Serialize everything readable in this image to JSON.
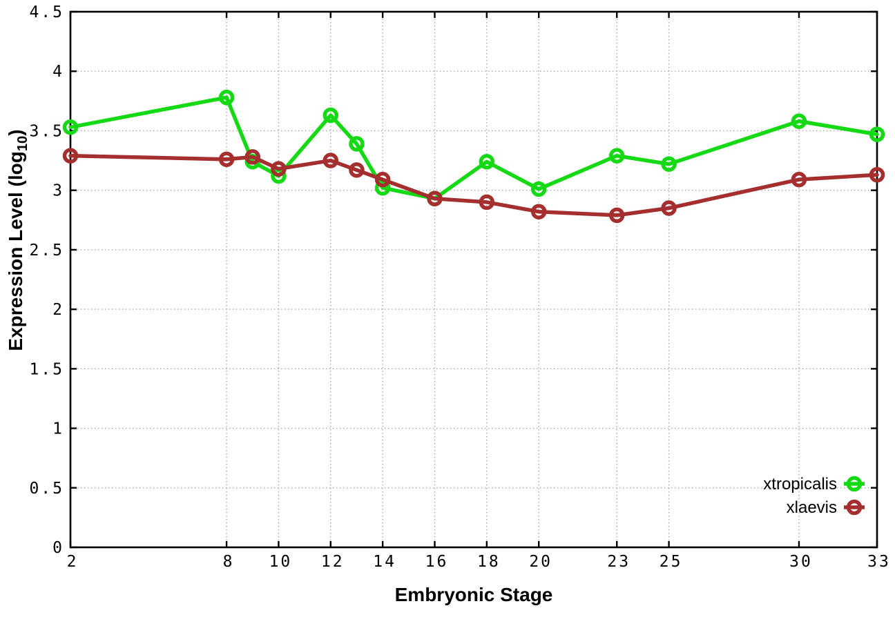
{
  "figure": {
    "background": "#ffffff",
    "border_color": "#000000",
    "grid_color": "#a8a8a8"
  },
  "chart_data": {
    "type": "line",
    "title": "",
    "xlabel": "Embryonic Stage",
    "ylabel": "Expression Level (log10)",
    "ylabel_prefix": "Expression Level (log",
    "ylabel_sub": "10",
    "ylabel_suffix": ")",
    "x": [
      2,
      8,
      9,
      10,
      12,
      13,
      14,
      16,
      18,
      20,
      23,
      25,
      30,
      33
    ],
    "series": [
      {
        "name": "xtropicalis",
        "color": "#16d916",
        "values": [
          3.53,
          3.78,
          3.24,
          3.12,
          3.63,
          3.39,
          3.02,
          2.93,
          3.24,
          3.01,
          3.29,
          3.22,
          3.58,
          3.47
        ]
      },
      {
        "name": "xlaevis",
        "color": "#a52e2e",
        "values": [
          3.29,
          3.26,
          3.28,
          3.18,
          3.25,
          3.17,
          3.09,
          2.93,
          2.9,
          2.82,
          2.79,
          2.85,
          3.09,
          3.13
        ]
      }
    ],
    "xlim": [
      2,
      33
    ],
    "ylim": [
      0,
      4.5
    ],
    "xticks": {
      "values": [
        2,
        8,
        10,
        12,
        14,
        16,
        18,
        20,
        23,
        25,
        30,
        33
      ],
      "labels": [
        "2",
        "8",
        "10",
        "12",
        "14",
        "16",
        "18",
        "20",
        "23",
        "25",
        "30",
        "33"
      ]
    },
    "yticks": {
      "values": [
        0,
        0.5,
        1,
        1.5,
        2,
        2.5,
        3,
        3.5,
        4,
        4.5
      ],
      "labels": [
        "0",
        "0.5",
        "1",
        "1.5",
        "2",
        "2.5",
        "3",
        "3.5",
        "4",
        "4.5"
      ]
    },
    "grid": "dotted",
    "legend": {
      "position": "bottom-right-inside",
      "entries": [
        "xtropicalis",
        "xlaevis"
      ]
    }
  }
}
